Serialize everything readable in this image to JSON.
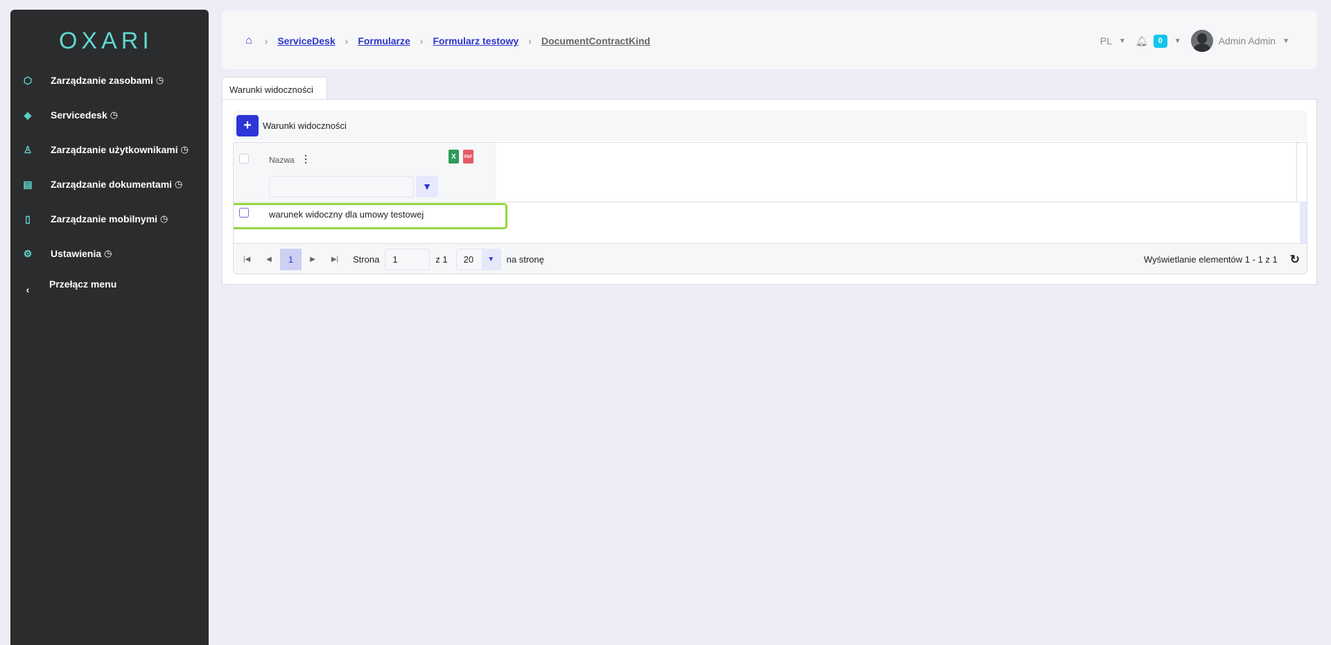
{
  "sidebar": {
    "logo": "OXARI",
    "items": [
      {
        "label": "Zarządzanie zasobami",
        "icon": "hexagons-icon"
      },
      {
        "label": "Servicedesk",
        "icon": "headset-icon"
      },
      {
        "label": "Zarządzanie użytkownikami",
        "icon": "org-users-icon"
      },
      {
        "label": "Zarządzanie dokumentami",
        "icon": "documents-icon"
      },
      {
        "label": "Zarządzanie mobilnymi",
        "icon": "mobile-icon"
      },
      {
        "label": "Ustawienia",
        "icon": "settings-gear-icon"
      }
    ],
    "toggle_label": "Przełącz menu"
  },
  "header": {
    "breadcrumb": [
      "ServiceDesk",
      "Formularze",
      "Formularz testowy"
    ],
    "current": "DocumentContractKind",
    "lang": "PL",
    "notifications": "0",
    "user": "Admin Admin"
  },
  "tab": "Warunki widoczności",
  "toolbar": {
    "add_label": "Warunki widoczności"
  },
  "grid": {
    "column": "Nazwa",
    "filter_value": "",
    "rows": [
      "warunek widoczny dla umowy testowej"
    ]
  },
  "pager": {
    "current_page": "1",
    "page_label": "Strona",
    "page_input": "1",
    "of_label": "z 1",
    "page_size": "20",
    "per_page_label": "na stronę",
    "summary": "Wyświetlanie elementów 1 - 1 z 1"
  },
  "colors": {
    "accent": "#2e35d6",
    "sidebar": "#2b2c2e",
    "teal": "#5fd8d0",
    "highlight": "#94d63d"
  }
}
